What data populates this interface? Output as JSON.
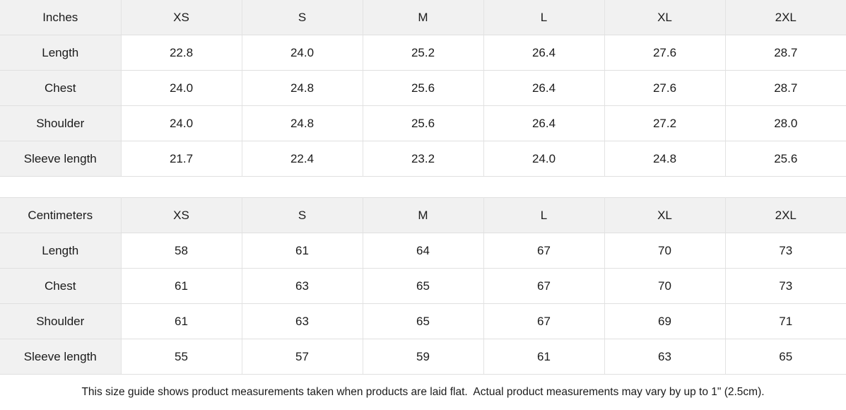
{
  "tables": [
    {
      "unit_label": "Inches",
      "sizes": [
        "XS",
        "S",
        "M",
        "L",
        "XL",
        "2XL"
      ],
      "rows": [
        {
          "label": "Length",
          "values": [
            "22.8",
            "24.0",
            "25.2",
            "26.4",
            "27.6",
            "28.7"
          ]
        },
        {
          "label": "Chest",
          "values": [
            "24.0",
            "24.8",
            "25.6",
            "26.4",
            "27.6",
            "28.7"
          ]
        },
        {
          "label": "Shoulder",
          "values": [
            "24.0",
            "24.8",
            "25.6",
            "26.4",
            "27.2",
            "28.0"
          ]
        },
        {
          "label": "Sleeve length",
          "values": [
            "21.7",
            "22.4",
            "23.2",
            "24.0",
            "24.8",
            "25.6"
          ]
        }
      ]
    },
    {
      "unit_label": "Centimeters",
      "sizes": [
        "XS",
        "S",
        "M",
        "L",
        "XL",
        "2XL"
      ],
      "rows": [
        {
          "label": "Length",
          "values": [
            "58",
            "61",
            "64",
            "67",
            "70",
            "73"
          ]
        },
        {
          "label": "Chest",
          "values": [
            "61",
            "63",
            "65",
            "67",
            "70",
            "73"
          ]
        },
        {
          "label": "Shoulder",
          "values": [
            "61",
            "63",
            "65",
            "67",
            "69",
            "71"
          ]
        },
        {
          "label": "Sleeve length",
          "values": [
            "55",
            "57",
            "59",
            "61",
            "63",
            "65"
          ]
        }
      ]
    }
  ],
  "footer": {
    "note": "This size guide shows product measurements taken when products are laid flat.  Actual product measurements may vary by up to 1\" (2.5cm)."
  },
  "colors": {
    "shade_bg": "#f1f1f1",
    "border": "#e0e0e0",
    "text": "#1b1b1b"
  }
}
